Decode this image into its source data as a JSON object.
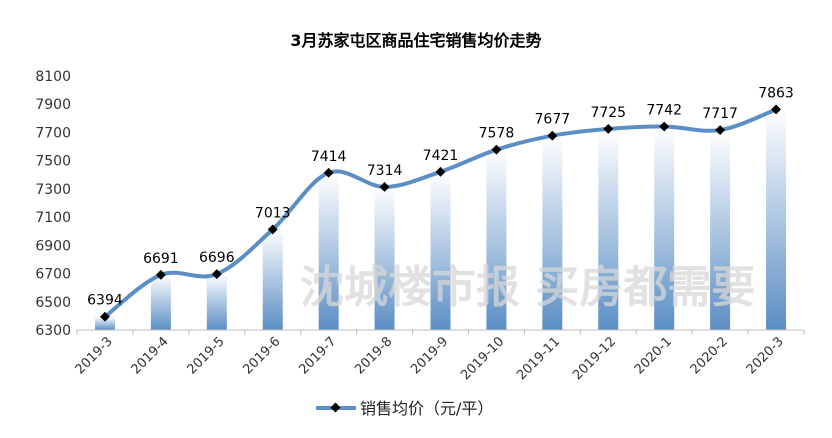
{
  "chart_data": {
    "type": "line",
    "title": "3月苏家屯区商品住宅销售均价走势",
    "watermark": "沈城楼市报 买房都需要",
    "categories": [
      "2019-3",
      "2019-4",
      "2019-5",
      "2019-6",
      "2019-7",
      "2019-8",
      "2019-9",
      "2019-10",
      "2019-11",
      "2019-12",
      "2020-1",
      "2020-2",
      "2020-3"
    ],
    "series": [
      {
        "name": "销售均价（元/平）",
        "values": [
          6394,
          6691,
          6696,
          7013,
          7414,
          7314,
          7421,
          7578,
          7677,
          7725,
          7742,
          7717,
          7863
        ],
        "color": "#5b8ec4"
      }
    ],
    "ylim": [
      6300,
      8100
    ],
    "yticks": [
      6300,
      6500,
      6700,
      6900,
      7100,
      7300,
      7500,
      7700,
      7900,
      8100
    ],
    "xlabel": "",
    "ylabel": "",
    "grid": false,
    "smooth": true,
    "data_labels": true,
    "legend_position": "bottom",
    "bar_gradient_color": "#5b8ec4",
    "marker_color": "#000000"
  }
}
